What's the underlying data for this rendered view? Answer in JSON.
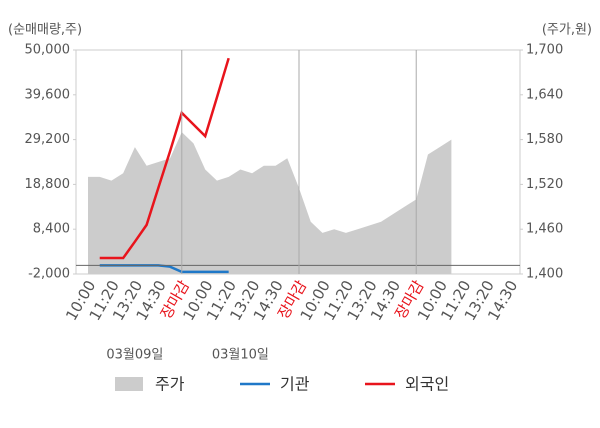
{
  "chart_data": {
    "type": "line",
    "y_label": "(순매매량,주)",
    "y2_label": "(주가,원)",
    "categories": [
      "10:00",
      null,
      "11:20",
      null,
      "13:20",
      null,
      "14:30",
      null,
      "장마감",
      null,
      "10:00",
      null,
      "11:20",
      null,
      "13:20",
      null,
      "14:30",
      null,
      "장마감",
      null,
      "10:00",
      null,
      "11:20",
      null,
      "13:20",
      null,
      "14:30",
      null,
      "장마감",
      null,
      "10:00",
      null,
      "11:20",
      null,
      "13:20",
      null,
      "14:30"
    ],
    "close_label": "장마감",
    "close_color": "#e8141c",
    "date_labels": [
      "03월09일",
      "03월10일"
    ],
    "ylim": [
      -2000,
      50000
    ],
    "yticks": [
      {
        "value": -2000,
        "label": "-2,000"
      },
      {
        "value": 8400,
        "label": "8,400"
      },
      {
        "value": 18800,
        "label": "18,800"
      },
      {
        "value": 29200,
        "label": "29,200"
      },
      {
        "value": 39600,
        "label": "39,600"
      },
      {
        "value": 50000,
        "label": "50,000"
      }
    ],
    "y2lim": [
      1400,
      1700
    ],
    "y2ticks": [
      {
        "value": 1400,
        "label": "1,400"
      },
      {
        "value": 1460,
        "label": "1,460"
      },
      {
        "value": 1520,
        "label": "1,520"
      },
      {
        "value": 1580,
        "label": "1,580"
      },
      {
        "value": 1640,
        "label": "1,640"
      },
      {
        "value": 1700,
        "label": "1,700"
      }
    ],
    "series": [
      {
        "name": "주가",
        "color": "#cccccc",
        "axis": "y2",
        "style": "area",
        "values": [
          1530,
          1530,
          1525,
          1535,
          1570,
          1545,
          1550,
          1555,
          1590,
          1575,
          1540,
          1525,
          1530,
          1540,
          1535,
          1545,
          1545,
          1555,
          1515,
          1470,
          1455,
          1460,
          1455,
          1460,
          1465,
          1470,
          1480,
          1490,
          1500,
          1560,
          1570,
          1580,
          null,
          null,
          null,
          null,
          null
        ]
      },
      {
        "name": "기관",
        "color": "#1f78c8",
        "style": "line",
        "values": [
          null,
          0,
          0,
          0,
          0,
          0,
          0,
          -300,
          -1500,
          -1500,
          -1500,
          -1500,
          -1500,
          null,
          null,
          null,
          null,
          null,
          null,
          null,
          null,
          null,
          null,
          null,
          null,
          null,
          null,
          null,
          null,
          null,
          null,
          null,
          null,
          null,
          null,
          null,
          null
        ]
      },
      {
        "name": "외국인",
        "color": "#e8141c",
        "style": "line",
        "values": [
          null,
          1700,
          1700,
          1700,
          5500,
          9400,
          18000,
          26500,
          35400,
          32700,
          30000,
          39000,
          48100,
          null,
          null,
          null,
          null,
          null,
          null,
          null,
          null,
          null,
          null,
          null,
          null,
          null,
          null,
          null,
          null,
          null,
          null,
          null,
          null,
          null,
          null,
          null,
          null
        ]
      }
    ]
  }
}
